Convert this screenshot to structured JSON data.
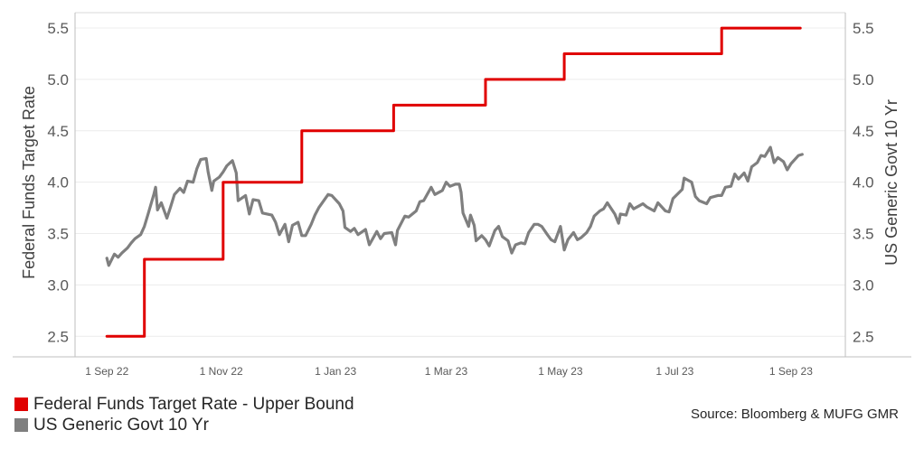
{
  "chart_data": {
    "type": "line",
    "title": "",
    "y_left": {
      "label": "Federal Funds Target Rate",
      "range": [
        2.3,
        5.65
      ],
      "ticks": [
        2.5,
        3.0,
        3.5,
        4.0,
        4.5,
        5.0,
        5.5
      ]
    },
    "y_right": {
      "label": "US Generic Govt 10 Yr",
      "range": [
        2.3,
        5.65
      ],
      "ticks": [
        2.5,
        3.0,
        3.5,
        4.0,
        4.5,
        5.0,
        5.5
      ]
    },
    "x_axis": {
      "range": [
        "2022-08-15",
        "2023-09-30"
      ],
      "ticks": [
        {
          "date": "2022-09-01",
          "label": "1 Sep 22"
        },
        {
          "date": "2022-11-01",
          "label": "1 Nov 22"
        },
        {
          "date": "2023-01-01",
          "label": "1 Jan 23"
        },
        {
          "date": "2023-03-01",
          "label": "1 Mar 23"
        },
        {
          "date": "2023-05-01",
          "label": "1 May 23"
        },
        {
          "date": "2023-07-01",
          "label": "1 Jul 23"
        },
        {
          "date": "2023-09-01",
          "label": "1 Sep 23"
        }
      ]
    },
    "grid": "horizontal",
    "legend_position": "bottom-left",
    "series": [
      {
        "name": "Federal Funds Target Rate - Upper Bound",
        "color": "#e00000",
        "axis": "left",
        "style": "step",
        "points": [
          [
            "2022-09-01",
            2.5
          ],
          [
            "2022-09-21",
            3.25
          ],
          [
            "2022-11-02",
            4.0
          ],
          [
            "2022-12-14",
            4.5
          ],
          [
            "2023-02-01",
            4.75
          ],
          [
            "2023-03-22",
            5.0
          ],
          [
            "2023-05-03",
            5.25
          ],
          [
            "2023-07-26",
            5.5
          ],
          [
            "2023-09-06",
            5.5
          ]
        ]
      },
      {
        "name": "US Generic Govt 10 Yr",
        "color": "#7f7f7f",
        "axis": "right",
        "style": "line",
        "points": [
          [
            "2022-09-01",
            3.26
          ],
          [
            "2022-09-02",
            3.19
          ],
          [
            "2022-09-05",
            3.3
          ],
          [
            "2022-09-07",
            3.27
          ],
          [
            "2022-09-09",
            3.31
          ],
          [
            "2022-09-12",
            3.36
          ],
          [
            "2022-09-14",
            3.41
          ],
          [
            "2022-09-16",
            3.45
          ],
          [
            "2022-09-19",
            3.49
          ],
          [
            "2022-09-21",
            3.57
          ],
          [
            "2022-09-23",
            3.69
          ],
          [
            "2022-09-26",
            3.88
          ],
          [
            "2022-09-27",
            3.95
          ],
          [
            "2022-09-28",
            3.73
          ],
          [
            "2022-09-30",
            3.8
          ],
          [
            "2022-10-03",
            3.65
          ],
          [
            "2022-10-05",
            3.76
          ],
          [
            "2022-10-07",
            3.88
          ],
          [
            "2022-10-10",
            3.94
          ],
          [
            "2022-10-12",
            3.9
          ],
          [
            "2022-10-14",
            4.01
          ],
          [
            "2022-10-17",
            4.0
          ],
          [
            "2022-10-19",
            4.13
          ],
          [
            "2022-10-21",
            4.22
          ],
          [
            "2022-10-24",
            4.23
          ],
          [
            "2022-10-25",
            4.1
          ],
          [
            "2022-10-27",
            3.92
          ],
          [
            "2022-10-28",
            4.01
          ],
          [
            "2022-10-31",
            4.05
          ],
          [
            "2022-11-02",
            4.1
          ],
          [
            "2022-11-04",
            4.16
          ],
          [
            "2022-11-07",
            4.21
          ],
          [
            "2022-11-09",
            4.09
          ],
          [
            "2022-11-10",
            3.82
          ],
          [
            "2022-11-14",
            3.87
          ],
          [
            "2022-11-16",
            3.69
          ],
          [
            "2022-11-18",
            3.83
          ],
          [
            "2022-11-21",
            3.82
          ],
          [
            "2022-11-23",
            3.7
          ],
          [
            "2022-11-28",
            3.68
          ],
          [
            "2022-11-30",
            3.61
          ],
          [
            "2022-12-02",
            3.49
          ],
          [
            "2022-12-05",
            3.59
          ],
          [
            "2022-12-07",
            3.42
          ],
          [
            "2022-12-09",
            3.58
          ],
          [
            "2022-12-12",
            3.61
          ],
          [
            "2022-12-14",
            3.48
          ],
          [
            "2022-12-16",
            3.48
          ],
          [
            "2022-12-19",
            3.59
          ],
          [
            "2022-12-21",
            3.68
          ],
          [
            "2022-12-23",
            3.75
          ],
          [
            "2022-12-28",
            3.88
          ],
          [
            "2022-12-30",
            3.87
          ],
          [
            "2023-01-03",
            3.79
          ],
          [
            "2023-01-05",
            3.72
          ],
          [
            "2023-01-06",
            3.56
          ],
          [
            "2023-01-09",
            3.52
          ],
          [
            "2023-01-11",
            3.55
          ],
          [
            "2023-01-13",
            3.49
          ],
          [
            "2023-01-17",
            3.54
          ],
          [
            "2023-01-19",
            3.39
          ],
          [
            "2023-01-23",
            3.52
          ],
          [
            "2023-01-25",
            3.45
          ],
          [
            "2023-01-27",
            3.5
          ],
          [
            "2023-01-31",
            3.51
          ],
          [
            "2023-02-02",
            3.39
          ],
          [
            "2023-02-03",
            3.53
          ],
          [
            "2023-02-07",
            3.67
          ],
          [
            "2023-02-09",
            3.66
          ],
          [
            "2023-02-13",
            3.72
          ],
          [
            "2023-02-15",
            3.81
          ],
          [
            "2023-02-17",
            3.82
          ],
          [
            "2023-02-21",
            3.95
          ],
          [
            "2023-02-23",
            3.88
          ],
          [
            "2023-02-27",
            3.92
          ],
          [
            "2023-03-01",
            4.0
          ],
          [
            "2023-03-03",
            3.96
          ],
          [
            "2023-03-06",
            3.98
          ],
          [
            "2023-03-08",
            3.98
          ],
          [
            "2023-03-09",
            3.9
          ],
          [
            "2023-03-10",
            3.7
          ],
          [
            "2023-03-13",
            3.57
          ],
          [
            "2023-03-14",
            3.68
          ],
          [
            "2023-03-16",
            3.58
          ],
          [
            "2023-03-17",
            3.43
          ],
          [
            "2023-03-20",
            3.48
          ],
          [
            "2023-03-22",
            3.44
          ],
          [
            "2023-03-24",
            3.38
          ],
          [
            "2023-03-27",
            3.53
          ],
          [
            "2023-03-29",
            3.57
          ],
          [
            "2023-03-31",
            3.47
          ],
          [
            "2023-04-03",
            3.43
          ],
          [
            "2023-04-05",
            3.31
          ],
          [
            "2023-04-07",
            3.39
          ],
          [
            "2023-04-10",
            3.41
          ],
          [
            "2023-04-12",
            3.4
          ],
          [
            "2023-04-14",
            3.51
          ],
          [
            "2023-04-17",
            3.59
          ],
          [
            "2023-04-19",
            3.59
          ],
          [
            "2023-04-21",
            3.57
          ],
          [
            "2023-04-24",
            3.49
          ],
          [
            "2023-04-26",
            3.44
          ],
          [
            "2023-04-28",
            3.42
          ],
          [
            "2023-05-01",
            3.57
          ],
          [
            "2023-05-03",
            3.34
          ],
          [
            "2023-05-05",
            3.44
          ],
          [
            "2023-05-08",
            3.51
          ],
          [
            "2023-05-10",
            3.44
          ],
          [
            "2023-05-12",
            3.46
          ],
          [
            "2023-05-15",
            3.51
          ],
          [
            "2023-05-17",
            3.57
          ],
          [
            "2023-05-19",
            3.67
          ],
          [
            "2023-05-22",
            3.72
          ],
          [
            "2023-05-24",
            3.74
          ],
          [
            "2023-05-26",
            3.8
          ],
          [
            "2023-05-30",
            3.69
          ],
          [
            "2023-06-01",
            3.6
          ],
          [
            "2023-06-02",
            3.69
          ],
          [
            "2023-06-05",
            3.68
          ],
          [
            "2023-06-07",
            3.79
          ],
          [
            "2023-06-09",
            3.74
          ],
          [
            "2023-06-12",
            3.77
          ],
          [
            "2023-06-14",
            3.79
          ],
          [
            "2023-06-16",
            3.76
          ],
          [
            "2023-06-20",
            3.72
          ],
          [
            "2023-06-22",
            3.8
          ],
          [
            "2023-06-26",
            3.72
          ],
          [
            "2023-06-28",
            3.71
          ],
          [
            "2023-06-30",
            3.84
          ],
          [
            "2023-07-05",
            3.93
          ],
          [
            "2023-07-06",
            4.04
          ],
          [
            "2023-07-10",
            4.0
          ],
          [
            "2023-07-12",
            3.86
          ],
          [
            "2023-07-14",
            3.82
          ],
          [
            "2023-07-18",
            3.79
          ],
          [
            "2023-07-20",
            3.85
          ],
          [
            "2023-07-24",
            3.87
          ],
          [
            "2023-07-26",
            3.87
          ],
          [
            "2023-07-28",
            3.95
          ],
          [
            "2023-07-31",
            3.96
          ],
          [
            "2023-08-02",
            4.08
          ],
          [
            "2023-08-04",
            4.03
          ],
          [
            "2023-08-07",
            4.09
          ],
          [
            "2023-08-09",
            4.01
          ],
          [
            "2023-08-11",
            4.15
          ],
          [
            "2023-08-14",
            4.19
          ],
          [
            "2023-08-16",
            4.26
          ],
          [
            "2023-08-18",
            4.25
          ],
          [
            "2023-08-21",
            4.34
          ],
          [
            "2023-08-23",
            4.19
          ],
          [
            "2023-08-25",
            4.24
          ],
          [
            "2023-08-28",
            4.2
          ],
          [
            "2023-08-30",
            4.12
          ],
          [
            "2023-09-01",
            4.18
          ],
          [
            "2023-09-05",
            4.26
          ],
          [
            "2023-09-07",
            4.27
          ]
        ]
      }
    ]
  },
  "legend": {
    "items": [
      {
        "label": "Federal Funds Target Rate - Upper Bound",
        "color": "#e00000"
      },
      {
        "label": "US Generic Govt 10 Yr",
        "color": "#7f7f7f"
      }
    ]
  },
  "source": "Source: Bloomberg & MUFG GMR"
}
